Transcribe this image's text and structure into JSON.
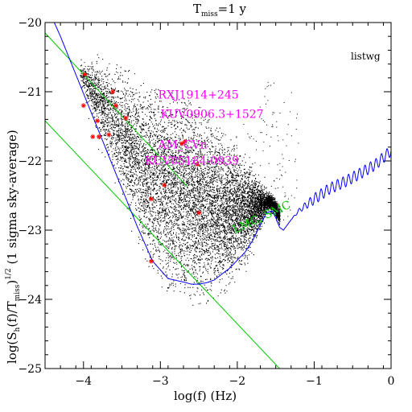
{
  "chart_data": {
    "type": "scatter",
    "title_main": "T",
    "title_sub": "miss",
    "title_rest": "=1 y",
    "corner_label": "listwg",
    "xlabel": "log(f) (Hz)",
    "ylabel": {
      "p1": "log(S",
      "p2": "h",
      "p3": "(f)/T",
      "p4": "miss",
      "p5": ")",
      "p6": "1/2",
      "p7": " (1 sigma sky-average)"
    },
    "xlim": [
      -4.5,
      0
    ],
    "ylim": [
      -25,
      -20
    ],
    "x_ticks": [
      {
        "value": -4,
        "label": "−4"
      },
      {
        "value": -3,
        "label": "−3"
      },
      {
        "value": -2,
        "label": "−2"
      },
      {
        "value": -1,
        "label": "−1"
      },
      {
        "value": 0,
        "label": "0"
      }
    ],
    "y_ticks": [
      {
        "value": -20,
        "label": "−20"
      },
      {
        "value": -21,
        "label": "−21"
      },
      {
        "value": -22,
        "label": "−22"
      },
      {
        "value": -23,
        "label": "−23"
      },
      {
        "value": -24,
        "label": "−24"
      },
      {
        "value": -25,
        "label": "−25"
      }
    ],
    "annotations": [
      {
        "text": "RXJ1914+245",
        "x": -3.03,
        "y": -21.1,
        "color": "#ff00ff"
      },
      {
        "text": "KUV0906.3+1527",
        "x": -3.0,
        "y": -21.38,
        "color": "#ff00ff"
      },
      {
        "text": "AM_CVn",
        "x": -3.03,
        "y": -21.82,
        "color": "#ff00ff"
      },
      {
        "text": "KUV05184-0939",
        "x": -3.2,
        "y": -22.05,
        "color": "#ff00ff"
      },
      {
        "text": "LMC, SMC",
        "x": -2.03,
        "y": -23.05,
        "color": "#00cc00",
        "rotate": -25
      }
    ],
    "series": [
      {
        "kind": "diagonal-line",
        "color": "#00cc00",
        "x": [
          -4.5,
          -1.45
        ],
        "y": [
          -21.42,
          -25.0
        ]
      },
      {
        "kind": "diagonal-line",
        "color": "#00cc00",
        "x": [
          -4.5,
          -2.65
        ],
        "y": [
          -20.15,
          -22.37
        ]
      },
      {
        "kind": "sensitivity-curve",
        "color": "#0000ff",
        "x": [
          -4.5,
          -4.3,
          -4.1,
          -3.9,
          -3.7,
          -3.5,
          -3.3,
          -3.1,
          -2.9,
          -2.7,
          -2.6,
          -2.5,
          -2.4,
          -2.3,
          -2.1,
          -1.9,
          -1.8,
          -1.7,
          -1.62,
          -1.55,
          -1.5,
          -1.45,
          -1.4,
          -1.3,
          -1.2,
          -1.0,
          -0.8,
          -0.6,
          -0.4,
          -0.2,
          0.0
        ],
        "y": [
          -19.7,
          -20.2,
          -20.75,
          -21.3,
          -21.85,
          -22.4,
          -22.95,
          -23.45,
          -23.7,
          -23.75,
          -23.78,
          -23.78,
          -23.76,
          -23.72,
          -23.55,
          -23.32,
          -23.15,
          -22.92,
          -22.75,
          -22.72,
          -22.82,
          -22.96,
          -23.0,
          -22.85,
          -22.72,
          -22.55,
          -22.4,
          -22.3,
          -22.18,
          -22.05,
          -21.85
        ],
        "ripple": {
          "from": -1.3,
          "amplitude": 0.08,
          "cycles_per_decade": 14
        }
      },
      {
        "kind": "scatter-cloud",
        "name": "",
        "color": "#000000",
        "n": 9000,
        "x_range": [
          -4.05,
          -1.45
        ],
        "y_center": "sky-sensitivity",
        "spread": 0.45
      },
      {
        "kind": "points",
        "color": "#ff0000",
        "marker": "asterisk",
        "x": [
          -4.0,
          -3.98,
          -3.88,
          -3.82,
          -3.8,
          -3.67,
          -3.62,
          -3.58,
          -3.45,
          -3.12,
          -3.12,
          -2.95,
          -2.72,
          -2.68,
          -2.52,
          -2.5
        ],
        "y": [
          -21.2,
          -20.75,
          -21.65,
          -21.42,
          -21.65,
          -21.62,
          -21.0,
          -21.2,
          -21.38,
          -22.55,
          -23.45,
          -22.35,
          -21.75,
          -21.72,
          -22.05,
          -22.75
        ]
      }
    ]
  }
}
